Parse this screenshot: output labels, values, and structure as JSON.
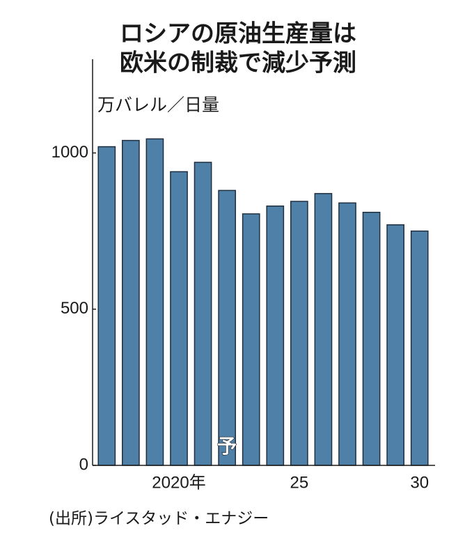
{
  "chart_data": {
    "type": "bar",
    "title": [
      "ロシアの原油生産量は",
      "欧米の制裁で減少予測"
    ],
    "y_label": "万バレル／日量",
    "source": "(出所)ライスタッド・エナジー",
    "annotation": "予",
    "categories": [
      null,
      null,
      null,
      "2020年",
      null,
      null,
      null,
      null,
      "25",
      null,
      null,
      null,
      null,
      "30"
    ],
    "values": [
      1020,
      1040,
      1045,
      940,
      970,
      880,
      805,
      830,
      845,
      870,
      840,
      810,
      770,
      750
    ],
    "color": "#4f80a8",
    "ylim": [
      0,
      1300
    ],
    "yticks": [
      0,
      500,
      1000
    ],
    "grid": false
  }
}
